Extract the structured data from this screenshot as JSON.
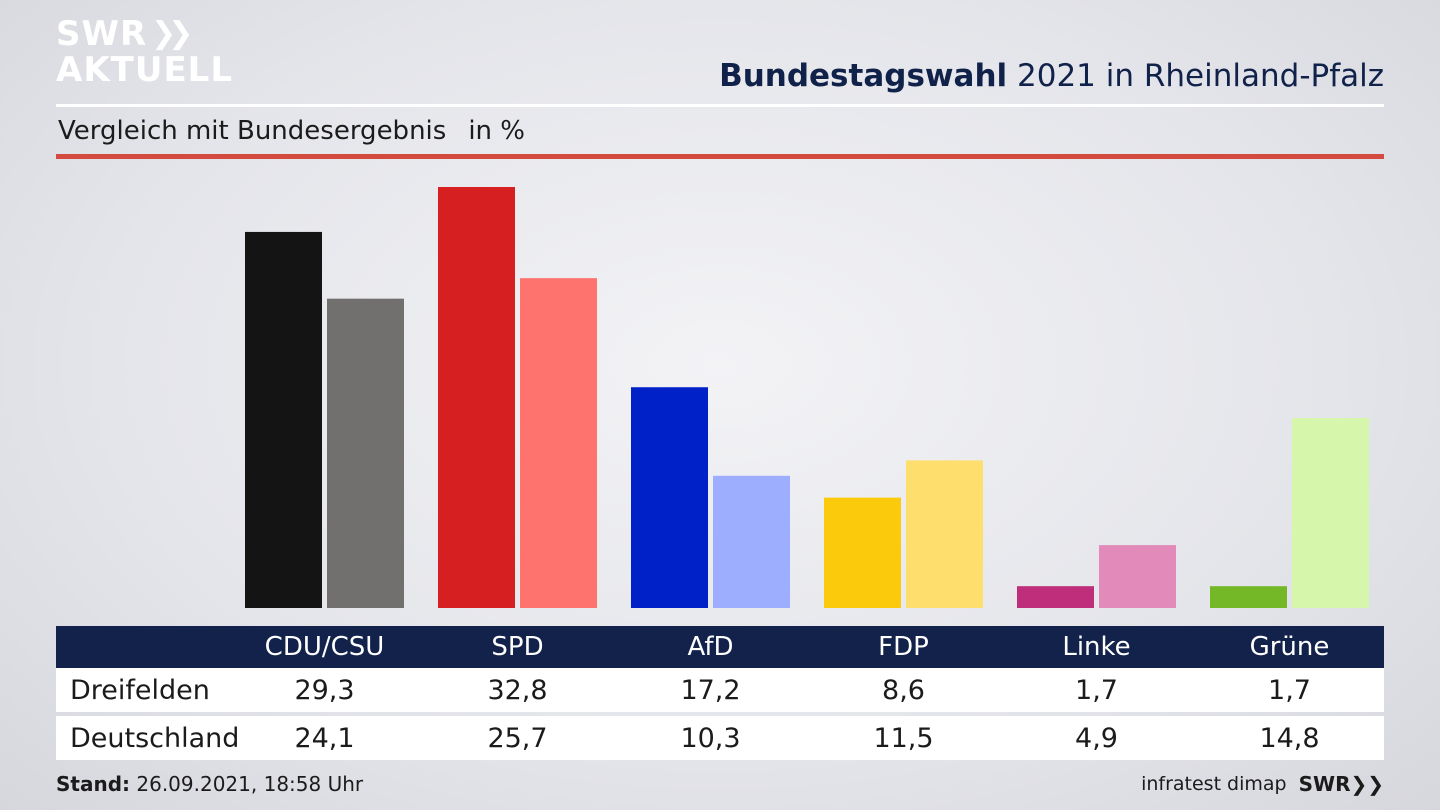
{
  "header": {
    "logo_line1": "SWR",
    "logo_line2": "AKTUELL",
    "title_bold": "Bundestagswahl",
    "title_rest": " 2021 in Rheinland-Pfalz",
    "subtitle": "Vergleich mit Bundesergebnis",
    "unit": "in %"
  },
  "footer": {
    "stand_label": "Stand:",
    "stand_value": " 26.09.2021, 18:58 Uhr",
    "source": "infratest dimap",
    "brand": "SWR"
  },
  "chart_data": {
    "type": "bar",
    "categories": [
      "CDU/CSU",
      "SPD",
      "AfD",
      "FDP",
      "Linke",
      "Grüne"
    ],
    "series": [
      {
        "name": "Dreifelden",
        "values": [
          29.3,
          32.8,
          17.2,
          8.6,
          1.7,
          1.7
        ],
        "labels": [
          "29,3",
          "32,8",
          "17,2",
          "8,6",
          "1,7",
          "1,7"
        ]
      },
      {
        "name": "Deutschland",
        "values": [
          24.1,
          25.7,
          10.3,
          11.5,
          4.9,
          14.8
        ],
        "labels": [
          "24,1",
          "25,7",
          "10,3",
          "11,5",
          "4,9",
          "14,8"
        ]
      }
    ],
    "colors_primary": [
      "#141414",
      "#d61f20",
      "#0020c8",
      "#fcca0c",
      "#be2e7a",
      "#74b828"
    ],
    "colors_secondary": [
      "#71706e",
      "#fe736d",
      "#9eaefe",
      "#fedf6e",
      "#e28ab9",
      "#d5f6ab"
    ],
    "ylim": [
      0,
      32.8
    ],
    "grid": false,
    "legend": "table-below"
  }
}
